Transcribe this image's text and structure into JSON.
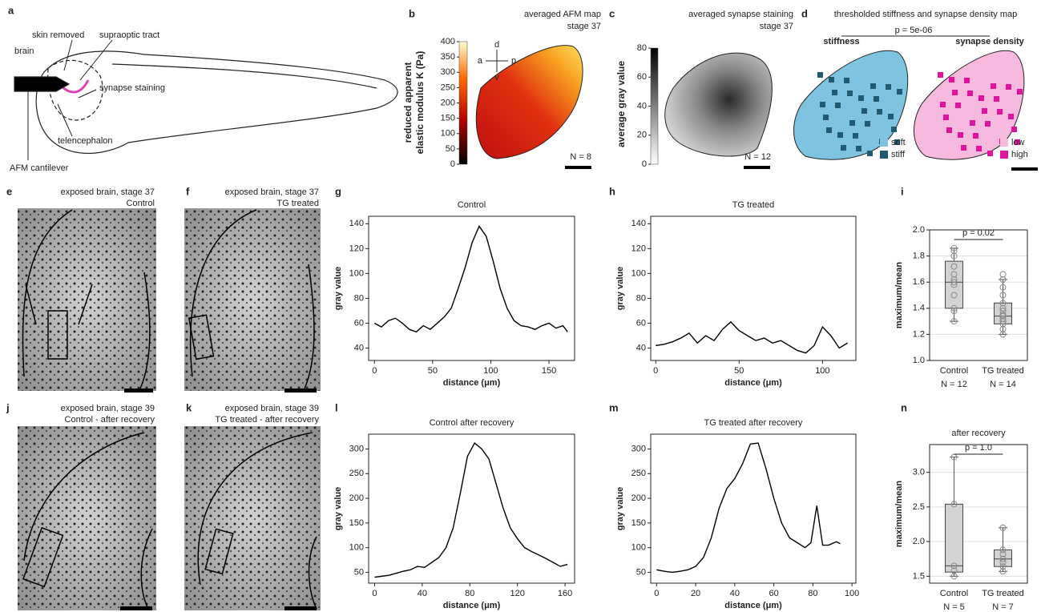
{
  "panel_letters": [
    "a",
    "b",
    "c",
    "d",
    "e",
    "f",
    "g",
    "h",
    "i",
    "j",
    "k",
    "l",
    "m",
    "n"
  ],
  "diagram": {
    "labels": [
      "skin removed",
      "supraoptic tract",
      "brain",
      "synapse staining",
      "telencephalon",
      "AFM cantilever"
    ]
  },
  "afm_map": {
    "title": "averaged AFM map",
    "subtitle": "stage 37",
    "colorbar_label": [
      "reduced apparent",
      "elastic modulus K (Pa)"
    ],
    "colorbar_lim": [
      0,
      400
    ],
    "colorbar_ticks": [
      0,
      50,
      100,
      150,
      200,
      250,
      300,
      350,
      400
    ],
    "axes": [
      "d",
      "v",
      "a",
      "p"
    ],
    "n": "N = 8"
  },
  "synapse_map": {
    "title": "averaged synapse staining",
    "subtitle": "stage 37",
    "colorbar_label": "average gray value",
    "colorbar_lim": [
      0,
      80
    ],
    "colorbar_ticks": [
      0,
      20,
      40,
      60,
      80
    ],
    "n": "N = 12"
  },
  "threshold_map": {
    "title": "thresholded stiffness and synapse density map",
    "p_value": "p = 5e-06",
    "maps": [
      {
        "title": "stiffness",
        "legend": [
          "soft",
          "stiff"
        ],
        "colors": [
          "#7ec4e0",
          "#1f5a70"
        ]
      },
      {
        "title": "synapse density",
        "legend": [
          "low",
          "high"
        ],
        "colors": [
          "#f8b9de",
          "#e0149c"
        ]
      }
    ]
  },
  "images": [
    {
      "title": "exposed brain, stage 37",
      "subtitle": "Control"
    },
    {
      "title": "exposed brain, stage 37",
      "subtitle": "TG treated"
    },
    {
      "title": "exposed brain, stage 39",
      "subtitle": "Control - after recovery"
    },
    {
      "title": "exposed brain, stage 39",
      "subtitle": "TG treated - after recovery"
    }
  ],
  "chart_data": [
    {
      "type": "line",
      "title": "Control",
      "xlabel": "distance (μm)",
      "ylabel": "gray value",
      "xlim": [
        -5,
        172
      ],
      "xticks": [
        0,
        50,
        100,
        150
      ],
      "ylim": [
        30,
        146
      ],
      "yticks": [
        40,
        60,
        80,
        100,
        120,
        140
      ],
      "grid": false,
      "x": [
        0,
        6,
        12,
        18,
        24,
        30,
        36,
        42,
        48,
        54,
        60,
        66,
        72,
        78,
        84,
        90,
        96,
        102,
        108,
        114,
        120,
        126,
        132,
        138,
        144,
        150,
        156,
        162,
        166
      ],
      "series": [
        {
          "color": "#000000",
          "values": [
            60,
            57,
            62,
            64,
            60,
            55,
            53,
            58,
            55,
            60,
            65,
            72,
            88,
            105,
            125,
            138,
            130,
            110,
            88,
            72,
            62,
            58,
            57,
            55,
            58,
            60,
            56,
            58,
            53
          ]
        }
      ]
    },
    {
      "type": "line",
      "title": "TG treated",
      "xlabel": "distance (μm)",
      "ylabel": "gray value",
      "xlim": [
        -3,
        120
      ],
      "xticks": [
        0,
        50,
        100
      ],
      "ylim": [
        30,
        146
      ],
      "yticks": [
        40,
        60,
        80,
        100,
        120,
        140
      ],
      "grid": false,
      "x": [
        0,
        5,
        10,
        15,
        20,
        25,
        30,
        35,
        40,
        45,
        50,
        55,
        60,
        65,
        70,
        75,
        80,
        85,
        90,
        95,
        100,
        105,
        110,
        115
      ],
      "series": [
        {
          "color": "#000000",
          "values": [
            42,
            43,
            45,
            48,
            52,
            44,
            50,
            46,
            55,
            61,
            54,
            50,
            46,
            48,
            44,
            46,
            42,
            38,
            36,
            42,
            57,
            50,
            40,
            44
          ]
        }
      ]
    },
    {
      "type": "box",
      "title": "",
      "ylabel": "maximum/mean",
      "categories": [
        "Control",
        "TG treated"
      ],
      "counts": [
        "N = 12",
        "N = 14"
      ],
      "annotation": "p = 0.02",
      "color": "#d3d3d3",
      "grid": true,
      "ylim": [
        1.0,
        2.0
      ],
      "yticks": [
        {
          "value": 1.0,
          "label": "1.0"
        },
        {
          "value": 1.2,
          "label": "1.2"
        },
        {
          "value": 1.4,
          "label": "1.4"
        },
        {
          "value": 1.6,
          "label": "1.6"
        },
        {
          "value": 1.8,
          "label": "1.8"
        },
        {
          "value": 2.0,
          "label": "2.0"
        }
      ],
      "stats": [
        {
          "min": 1.3,
          "q1": 1.4,
          "median": 1.6,
          "q3": 1.76,
          "max": 1.86
        },
        {
          "min": 1.2,
          "q1": 1.28,
          "median": 1.34,
          "q3": 1.44,
          "max": 1.62
        }
      ],
      "points": [
        [
          1.3,
          1.38,
          1.4,
          1.5,
          1.58,
          1.6,
          1.62,
          1.66,
          1.72,
          1.8,
          1.84,
          1.86
        ],
        [
          1.2,
          1.24,
          1.28,
          1.3,
          1.32,
          1.34,
          1.35,
          1.38,
          1.4,
          1.44,
          1.5,
          1.56,
          1.62,
          1.66
        ]
      ]
    },
    {
      "type": "line",
      "title": "Control after recovery",
      "xlabel": "distance (μm)",
      "ylabel": "gray value",
      "xlim": [
        -5,
        168
      ],
      "xticks": [
        0,
        40,
        80,
        120,
        160
      ],
      "ylim": [
        28,
        330
      ],
      "yticks": [
        50,
        100,
        150,
        200,
        250,
        300
      ],
      "grid": false,
      "x": [
        0,
        6,
        12,
        18,
        24,
        30,
        36,
        42,
        48,
        54,
        60,
        66,
        72,
        78,
        84,
        90,
        96,
        102,
        108,
        114,
        120,
        126,
        132,
        138,
        144,
        150,
        156,
        162
      ],
      "series": [
        {
          "color": "#000000",
          "values": [
            40,
            42,
            44,
            48,
            52,
            55,
            62,
            60,
            70,
            80,
            100,
            140,
            210,
            285,
            312,
            300,
            280,
            230,
            180,
            140,
            118,
            100,
            92,
            85,
            78,
            70,
            62,
            66
          ]
        }
      ]
    },
    {
      "type": "line",
      "title": "TG treated after recovery",
      "xlabel": "distance (μm)",
      "ylabel": "gray value",
      "xlim": [
        -3,
        102
      ],
      "xticks": [
        0,
        20,
        40,
        60,
        80,
        100
      ],
      "ylim": [
        28,
        330
      ],
      "yticks": [
        50,
        100,
        150,
        200,
        250,
        300
      ],
      "grid": false,
      "x": [
        0,
        4,
        8,
        12,
        16,
        20,
        24,
        28,
        32,
        36,
        40,
        44,
        48,
        52,
        56,
        60,
        64,
        68,
        72,
        76,
        79,
        82,
        85,
        88,
        92,
        94
      ],
      "series": [
        {
          "color": "#000000",
          "values": [
            55,
            52,
            50,
            52,
            55,
            62,
            80,
            120,
            180,
            220,
            240,
            270,
            310,
            312,
            260,
            200,
            150,
            120,
            110,
            100,
            110,
            185,
            105,
            105,
            112,
            108
          ]
        }
      ]
    },
    {
      "type": "box",
      "title": "after recovery",
      "ylabel": "maximum/mean",
      "categories": [
        "Control",
        "TG treated"
      ],
      "counts": [
        "N = 5",
        "N = 7"
      ],
      "annotation": "p = 1.0",
      "color": "#d3d3d3",
      "grid": true,
      "ylim": [
        1.4,
        3.4
      ],
      "yticks": [
        {
          "value": 1.5,
          "label": "1.5"
        },
        {
          "value": 2.0,
          "label": "2.0"
        },
        {
          "value": 2.5,
          "label": "2.5"
        },
        {
          "value": 3.0,
          "label": "3.0"
        }
      ],
      "stats": [
        {
          "min": 1.5,
          "q1": 1.56,
          "median": 1.65,
          "q3": 2.54,
          "max": 3.22
        },
        {
          "min": 1.57,
          "q1": 1.64,
          "median": 1.75,
          "q3": 1.88,
          "max": 2.2
        }
      ],
      "points": [
        [
          1.5,
          1.58,
          1.65,
          2.54,
          3.22
        ],
        [
          1.57,
          1.64,
          1.7,
          1.75,
          1.82,
          1.88,
          2.2
        ]
      ]
    }
  ]
}
